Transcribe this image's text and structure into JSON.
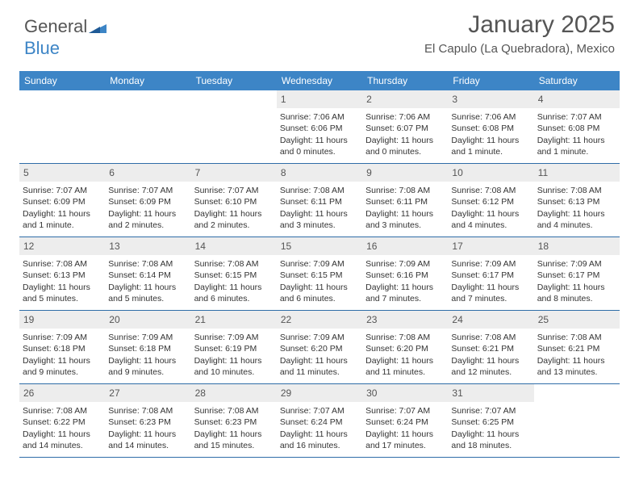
{
  "brand": {
    "name1": "General",
    "name2": "Blue"
  },
  "title": "January 2025",
  "subtitle": "El Capulo (La Quebradora), Mexico",
  "colors": {
    "header_bg": "#3d85c6",
    "header_text": "#ffffff",
    "daynum_bg": "#ededed",
    "rule": "#2f6da8",
    "text": "#333333"
  },
  "day_headers": [
    "Sunday",
    "Monday",
    "Tuesday",
    "Wednesday",
    "Thursday",
    "Friday",
    "Saturday"
  ],
  "weeks": [
    [
      null,
      null,
      null,
      {
        "d": "1",
        "sr": "7:06 AM",
        "ss": "6:06 PM",
        "dl": "11 hours and 0 minutes."
      },
      {
        "d": "2",
        "sr": "7:06 AM",
        "ss": "6:07 PM",
        "dl": "11 hours and 0 minutes."
      },
      {
        "d": "3",
        "sr": "7:06 AM",
        "ss": "6:08 PM",
        "dl": "11 hours and 1 minute."
      },
      {
        "d": "4",
        "sr": "7:07 AM",
        "ss": "6:08 PM",
        "dl": "11 hours and 1 minute."
      }
    ],
    [
      {
        "d": "5",
        "sr": "7:07 AM",
        "ss": "6:09 PM",
        "dl": "11 hours and 1 minute."
      },
      {
        "d": "6",
        "sr": "7:07 AM",
        "ss": "6:09 PM",
        "dl": "11 hours and 2 minutes."
      },
      {
        "d": "7",
        "sr": "7:07 AM",
        "ss": "6:10 PM",
        "dl": "11 hours and 2 minutes."
      },
      {
        "d": "8",
        "sr": "7:08 AM",
        "ss": "6:11 PM",
        "dl": "11 hours and 3 minutes."
      },
      {
        "d": "9",
        "sr": "7:08 AM",
        "ss": "6:11 PM",
        "dl": "11 hours and 3 minutes."
      },
      {
        "d": "10",
        "sr": "7:08 AM",
        "ss": "6:12 PM",
        "dl": "11 hours and 4 minutes."
      },
      {
        "d": "11",
        "sr": "7:08 AM",
        "ss": "6:13 PM",
        "dl": "11 hours and 4 minutes."
      }
    ],
    [
      {
        "d": "12",
        "sr": "7:08 AM",
        "ss": "6:13 PM",
        "dl": "11 hours and 5 minutes."
      },
      {
        "d": "13",
        "sr": "7:08 AM",
        "ss": "6:14 PM",
        "dl": "11 hours and 5 minutes."
      },
      {
        "d": "14",
        "sr": "7:08 AM",
        "ss": "6:15 PM",
        "dl": "11 hours and 6 minutes."
      },
      {
        "d": "15",
        "sr": "7:09 AM",
        "ss": "6:15 PM",
        "dl": "11 hours and 6 minutes."
      },
      {
        "d": "16",
        "sr": "7:09 AM",
        "ss": "6:16 PM",
        "dl": "11 hours and 7 minutes."
      },
      {
        "d": "17",
        "sr": "7:09 AM",
        "ss": "6:17 PM",
        "dl": "11 hours and 7 minutes."
      },
      {
        "d": "18",
        "sr": "7:09 AM",
        "ss": "6:17 PM",
        "dl": "11 hours and 8 minutes."
      }
    ],
    [
      {
        "d": "19",
        "sr": "7:09 AM",
        "ss": "6:18 PM",
        "dl": "11 hours and 9 minutes."
      },
      {
        "d": "20",
        "sr": "7:09 AM",
        "ss": "6:18 PM",
        "dl": "11 hours and 9 minutes."
      },
      {
        "d": "21",
        "sr": "7:09 AM",
        "ss": "6:19 PM",
        "dl": "11 hours and 10 minutes."
      },
      {
        "d": "22",
        "sr": "7:09 AM",
        "ss": "6:20 PM",
        "dl": "11 hours and 11 minutes."
      },
      {
        "d": "23",
        "sr": "7:08 AM",
        "ss": "6:20 PM",
        "dl": "11 hours and 11 minutes."
      },
      {
        "d": "24",
        "sr": "7:08 AM",
        "ss": "6:21 PM",
        "dl": "11 hours and 12 minutes."
      },
      {
        "d": "25",
        "sr": "7:08 AM",
        "ss": "6:21 PM",
        "dl": "11 hours and 13 minutes."
      }
    ],
    [
      {
        "d": "26",
        "sr": "7:08 AM",
        "ss": "6:22 PM",
        "dl": "11 hours and 14 minutes."
      },
      {
        "d": "27",
        "sr": "7:08 AM",
        "ss": "6:23 PM",
        "dl": "11 hours and 14 minutes."
      },
      {
        "d": "28",
        "sr": "7:08 AM",
        "ss": "6:23 PM",
        "dl": "11 hours and 15 minutes."
      },
      {
        "d": "29",
        "sr": "7:07 AM",
        "ss": "6:24 PM",
        "dl": "11 hours and 16 minutes."
      },
      {
        "d": "30",
        "sr": "7:07 AM",
        "ss": "6:24 PM",
        "dl": "11 hours and 17 minutes."
      },
      {
        "d": "31",
        "sr": "7:07 AM",
        "ss": "6:25 PM",
        "dl": "11 hours and 18 minutes."
      },
      null
    ]
  ],
  "labels": {
    "sunrise": "Sunrise:",
    "sunset": "Sunset:",
    "daylight": "Daylight:"
  }
}
